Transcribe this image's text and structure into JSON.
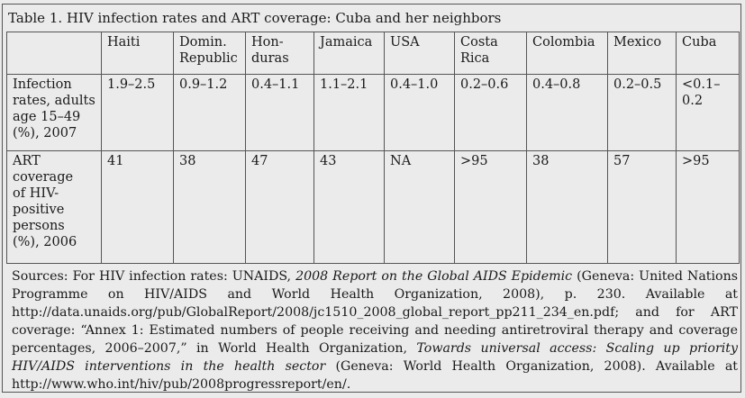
{
  "title": "Table 1. HIV infection rates and ART coverage: Cuba and her neighbors",
  "columns": [
    "Haiti",
    "Domin. Republic",
    "Hon-duras",
    "Jamaica",
    "USA",
    "Costa Rica",
    "Colombia",
    "Mexico",
    "Cuba"
  ],
  "column_lines": [
    [
      "Haiti"
    ],
    [
      "Domin.",
      "Republic"
    ],
    [
      "Hon-",
      "duras"
    ],
    [
      "Jamaica"
    ],
    [
      "USA"
    ],
    [
      "Costa",
      "Rica"
    ],
    [
      "Colombia"
    ],
    [
      "Mexico"
    ],
    [
      "Cuba"
    ]
  ],
  "rows": [
    {
      "label_lines": [
        "Infection",
        "rates, adults",
        "age 15–49",
        "(%), 2007"
      ],
      "label": "Infection rates, adults age 15–49 (%), 2007",
      "values": [
        "1.9–2.5",
        "0.9–1.2",
        "0.4–1.1",
        "1.1–2.1",
        "0.4–1.0",
        "0.2–0.6",
        "0.4–0.8",
        "0.2–0.5",
        "<0.1–0.2"
      ],
      "value_lines_cuba": [
        "<0.1–",
        "0.2"
      ]
    },
    {
      "label_lines": [
        "ART",
        "coverage",
        "of HIV-",
        "positive",
        "persons",
        "(%), 2006"
      ],
      "label": "ART coverage of HIV-positive persons (%), 2006",
      "values": [
        "41",
        "38",
        "47",
        "43",
        "NA",
        ">95",
        "38",
        "57",
        ">95"
      ]
    }
  ],
  "sources": {
    "p1": "Sources: For HIV infection rates: UNAIDS, ",
    "i1": "2008 Report on the Global AIDS Epidemic",
    "p2": " (Geneva: United Nations Programme on HIV/AIDS and World Health Organization, 2008), p. 230. Available at http://data.unaids.org/pub/GlobalReport/2008/jc1510_2008_global_report_pp211_234_en.pdf; and for ART coverage: “Annex 1: Estimated numbers of people receiving and needing antiretroviral therapy and coverage percentages, 2006–2007,” in World Health Organization, ",
    "i2": "Towards universal access: Scaling up priority HIV/AIDS interventions in the health sector",
    "p3": " (Geneva: World Health Organization, 2008). Available at http://www.who.int/hiv/pub/2008progressreport/en/."
  }
}
